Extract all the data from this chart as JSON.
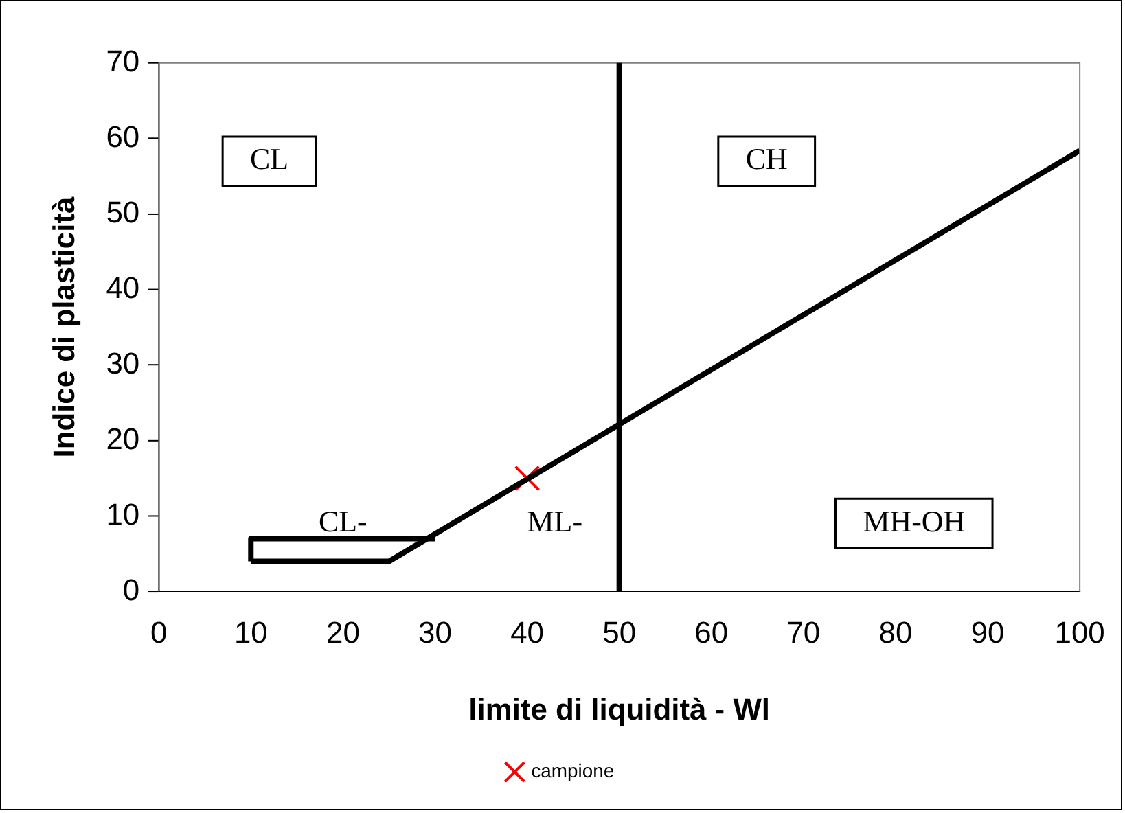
{
  "chart_data": {
    "type": "line",
    "xlabel": "limite di liquidità - Wl",
    "ylabel": "Indice di plasticità",
    "xlim": [
      0,
      100
    ],
    "xticks": [
      0,
      10,
      20,
      30,
      40,
      50,
      60,
      70,
      80,
      90,
      100
    ],
    "ylim": [
      0,
      70
    ],
    "yticks": [
      0,
      10,
      20,
      30,
      40,
      50,
      60,
      70
    ],
    "grid": false,
    "legend": "bottom",
    "line_style": "solid",
    "series": [
      {
        "type": "line",
        "color": "#000000",
        "x": [
          10,
          25,
          100
        ],
        "values": [
          4,
          4,
          58.4
        ]
      },
      {
        "type": "line",
        "color": "#000000",
        "x": [
          10,
          10,
          30
        ],
        "values": [
          4,
          7,
          7
        ]
      },
      {
        "type": "scatter",
        "name": "campione",
        "color": "#ff0000",
        "marker": "cross",
        "x": [
          40
        ],
        "values": [
          15
        ]
      }
    ],
    "ref_lines": [
      {
        "axis": "x",
        "value": 50,
        "color": "#000000"
      }
    ],
    "annotations": [
      "CL",
      "CH",
      "MH-OH",
      "CL-",
      "ML-"
    ]
  }
}
